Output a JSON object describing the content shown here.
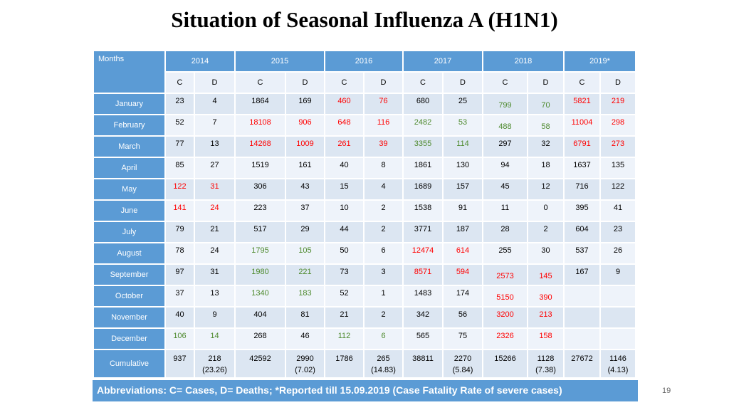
{
  "title": "Situation of Seasonal Influenza A (H1N1)",
  "header": {
    "corner": "Months",
    "years": [
      "2014",
      "2015",
      "2016",
      "2017",
      "2018",
      "2019*"
    ],
    "sub": [
      "C",
      "D",
      "C",
      "D",
      "C",
      "D",
      "C",
      "D",
      "C",
      "D",
      "C",
      "D"
    ]
  },
  "rows": [
    {
      "month": "January",
      "values": [
        "23",
        "4",
        "1864",
        "169",
        "460",
        "76",
        "680",
        "25",
        "799",
        "70",
        "5821",
        "219"
      ]
    },
    {
      "month": "February",
      "values": [
        "52",
        "7",
        "18108",
        "906",
        "648",
        "116",
        "2482",
        "53",
        "488",
        "58",
        "11004",
        "298"
      ]
    },
    {
      "month": "March",
      "values": [
        "77",
        "13",
        "14268",
        "1009",
        "261",
        "39",
        "3355",
        "114",
        "297",
        "32",
        "6791",
        "273"
      ]
    },
    {
      "month": "April",
      "values": [
        "85",
        "27",
        "1519",
        "161",
        "40",
        "8",
        "1861",
        "130",
        "94",
        "18",
        "1637",
        "135"
      ]
    },
    {
      "month": "May",
      "values": [
        "122",
        "31",
        "306",
        "43",
        "15",
        "4",
        "1689",
        "157",
        "45",
        "12",
        "716",
        "122"
      ]
    },
    {
      "month": "June",
      "values": [
        "141",
        "24",
        "223",
        "37",
        "10",
        "2",
        "1538",
        "91",
        "11",
        "0",
        "395",
        "41"
      ]
    },
    {
      "month": "July",
      "values": [
        "79",
        "21",
        "517",
        "29",
        "44",
        "2",
        "3771",
        "187",
        "28",
        "2",
        "604",
        "23"
      ]
    },
    {
      "month": "August",
      "values": [
        "78",
        "24",
        "1795",
        "105",
        "50",
        "6",
        "12474",
        "614",
        "255",
        "30",
        "537",
        "26"
      ]
    },
    {
      "month": "September",
      "values": [
        "97",
        "31",
        "1980",
        "221",
        "73",
        "3",
        "8571",
        "594",
        "2573",
        "145",
        "167",
        "9"
      ]
    },
    {
      "month": "October",
      "values": [
        "37",
        "13",
        "1340",
        "183",
        "52",
        "1",
        "1483",
        "174",
        "5150",
        "390",
        "",
        ""
      ]
    },
    {
      "month": "November",
      "values": [
        "40",
        "9",
        "404",
        "81",
        "21",
        "2",
        "342",
        "56",
        "3200",
        "213",
        "",
        ""
      ]
    },
    {
      "month": "December",
      "values": [
        "106",
        "14",
        "268",
        "46",
        "112",
        "6",
        "565",
        "75",
        "2326",
        "158",
        "",
        ""
      ]
    }
  ],
  "cumulative": {
    "label": "Cumulative",
    "values": [
      "937",
      "218",
      "42592",
      "2990",
      "1786",
      "265",
      "38811",
      "2270",
      "15266",
      "1128",
      "27672",
      "1146"
    ],
    "cfr": [
      "",
      "(23.26)",
      "",
      "(7.02)",
      "",
      "(14.83)",
      "",
      "(5.84)",
      "",
      "(7.38)",
      "",
      "(4.13)"
    ]
  },
  "colors": {
    "red": "#ff0000",
    "green": "#4e8a2e",
    "header_blue": "#5b9bd5"
  },
  "highlights": {
    "red": [
      [
        4,
        0
      ],
      [
        4,
        1
      ],
      [
        5,
        0
      ],
      [
        5,
        1
      ],
      [
        1,
        2
      ],
      [
        1,
        3
      ],
      [
        2,
        2
      ],
      [
        2,
        3
      ],
      [
        0,
        4
      ],
      [
        0,
        5
      ],
      [
        1,
        4
      ],
      [
        1,
        5
      ],
      [
        2,
        4
      ],
      [
        2,
        5
      ],
      [
        7,
        6
      ],
      [
        7,
        7
      ],
      [
        8,
        6
      ],
      [
        8,
        7
      ],
      [
        8,
        8
      ],
      [
        8,
        9
      ],
      [
        9,
        8
      ],
      [
        9,
        9
      ],
      [
        10,
        8
      ],
      [
        10,
        9
      ],
      [
        11,
        8
      ],
      [
        11,
        9
      ],
      [
        0,
        10
      ],
      [
        0,
        11
      ],
      [
        1,
        10
      ],
      [
        1,
        11
      ],
      [
        2,
        10
      ],
      [
        2,
        11
      ]
    ],
    "green": [
      [
        11,
        0
      ],
      [
        11,
        1
      ],
      [
        7,
        2
      ],
      [
        7,
        3
      ],
      [
        8,
        2
      ],
      [
        8,
        3
      ],
      [
        9,
        2
      ],
      [
        9,
        3
      ],
      [
        11,
        4
      ],
      [
        11,
        5
      ],
      [
        1,
        6
      ],
      [
        1,
        7
      ],
      [
        2,
        6
      ],
      [
        2,
        7
      ],
      [
        0,
        8
      ],
      [
        0,
        9
      ],
      [
        1,
        8
      ],
      [
        1,
        9
      ]
    ]
  },
  "offset_low": [
    [
      0,
      8
    ],
    [
      0,
      9
    ],
    [
      1,
      8
    ],
    [
      1,
      9
    ],
    [
      8,
      8
    ],
    [
      8,
      9
    ],
    [
      9,
      8
    ],
    [
      9,
      9
    ]
  ],
  "footer": "Abbreviations: C= Cases, D= Deaths; *Reported till 15.09.2019  (Case Fatality Rate of severe cases)",
  "page_number": "19"
}
